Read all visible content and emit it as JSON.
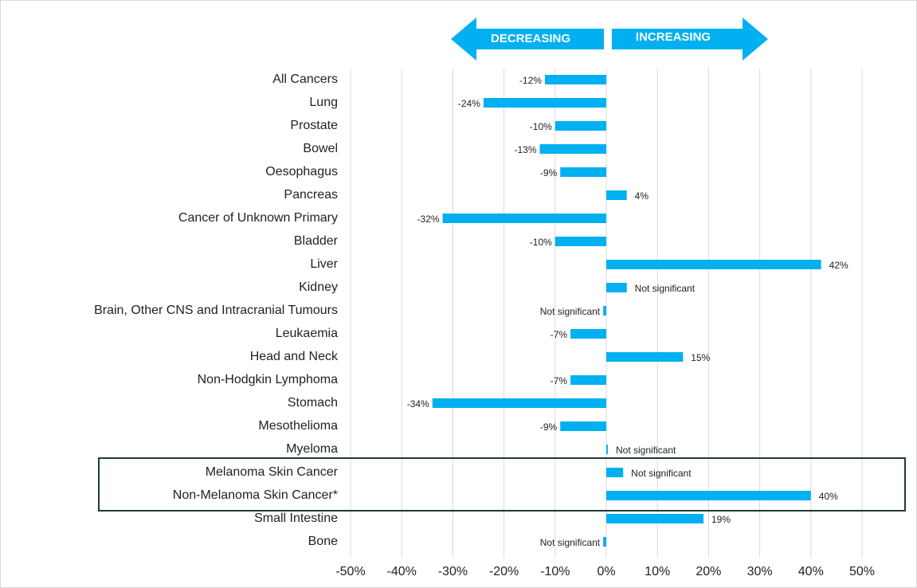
{
  "chart_data": {
    "type": "barh",
    "annotations": {
      "left": "DECREASING",
      "right": "INCREASING"
    },
    "categories": [
      "All Cancers",
      "Lung",
      "Prostate",
      "Bowel",
      "Oesophagus",
      "Pancreas",
      "Cancer of Unknown Primary",
      "Bladder",
      "Liver",
      "Kidney",
      "Brain, Other CNS and Intracranial Tumours",
      "Leukaemia",
      "Head and Neck",
      "Non-Hodgkin Lymphoma",
      "Stomach",
      "Mesothelioma",
      "Myeloma",
      "Melanoma Skin Cancer",
      "Non-Melanoma Skin Cancer*",
      "Small Intestine",
      "Bone"
    ],
    "values": [
      -12,
      -24,
      -10,
      -13,
      -9,
      4,
      -32,
      -10,
      42,
      4,
      -0.6,
      -7,
      15,
      -7,
      -34,
      -9,
      0.3,
      3.3,
      40,
      19,
      -0.6
    ],
    "value_labels": [
      "-12%",
      "-24%",
      "-10%",
      "-13%",
      "-9%",
      "4%",
      "-32%",
      "-10%",
      "42%",
      "Not significant",
      "Not significant",
      "-7%",
      "15%",
      "-7%",
      "-34%",
      "-9%",
      "Not significant",
      "Not significant",
      "40%",
      "19%",
      "Not significant"
    ],
    "color": "#00b0f0",
    "xlim": [
      -50,
      50
    ],
    "xticks": [
      {
        "value": -50,
        "label": "-50%"
      },
      {
        "value": -40,
        "label": "-40%"
      },
      {
        "value": -30,
        "label": "-30%"
      },
      {
        "value": -20,
        "label": "-20%"
      },
      {
        "value": -10,
        "label": "-10%"
      },
      {
        "value": 0,
        "label": "0%"
      },
      {
        "value": 10,
        "label": "10%"
      },
      {
        "value": 20,
        "label": "20%"
      },
      {
        "value": 30,
        "label": "30%"
      },
      {
        "value": 40,
        "label": "40%"
      },
      {
        "value": 50,
        "label": "50%"
      }
    ],
    "grid": true
  }
}
